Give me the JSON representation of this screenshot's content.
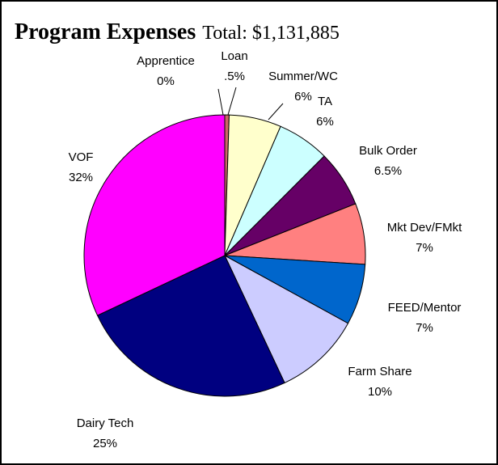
{
  "chart_data": {
    "type": "pie",
    "title": "Program Expenses",
    "subtitle": "Total: $1,131,885",
    "categories": [
      "Apprentice",
      "Loan",
      "Summer/WC",
      "TA",
      "Bulk Order",
      "Mkt Dev/FMkt",
      "FEED/Mentor",
      "Farm Share",
      "Dairy Tech",
      "VOF"
    ],
    "values": [
      0,
      0.5,
      6,
      6,
      6.5,
      7,
      7,
      10,
      25,
      32
    ],
    "value_labels": [
      "0%",
      ".5%",
      "6%",
      "6%",
      "6.5%",
      "7%",
      "7%",
      "10%",
      "25%",
      "32%"
    ],
    "colors": [
      "#993366",
      "#cc6666",
      "#ffffcc",
      "#ccffff",
      "#660066",
      "#ff8080",
      "#0066cc",
      "#ccccff",
      "#000080",
      "#ff00ff"
    ]
  }
}
